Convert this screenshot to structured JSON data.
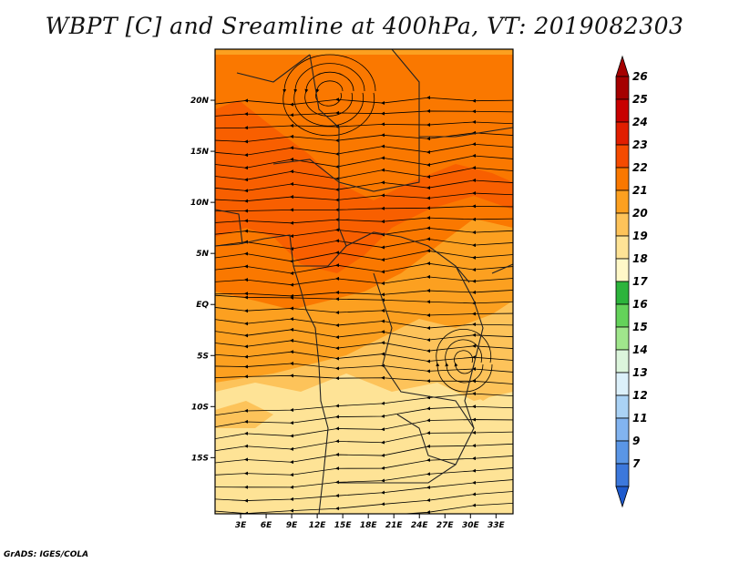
{
  "title": "WBPT [C] and Sreamline at 400hPa, VT: 2019082303",
  "credit": "GrADS: IGES/COLA",
  "map": {
    "lon_range": [
      0,
      35
    ],
    "lat_range": [
      -20.5,
      25
    ],
    "lat_ticks": [
      {
        "value": 20,
        "label": "20N"
      },
      {
        "value": 15,
        "label": "15N"
      },
      {
        "value": 10,
        "label": "10N"
      },
      {
        "value": 5,
        "label": "5N"
      },
      {
        "value": 0,
        "label": "EQ"
      },
      {
        "value": -5,
        "label": "5S"
      },
      {
        "value": -10,
        "label": "10S"
      },
      {
        "value": -15,
        "label": "15S"
      }
    ],
    "lon_ticks": [
      {
        "value": 3,
        "label": "3E"
      },
      {
        "value": 6,
        "label": "6E"
      },
      {
        "value": 9,
        "label": "9E"
      },
      {
        "value": 12,
        "label": "12E"
      },
      {
        "value": 15,
        "label": "15E"
      },
      {
        "value": 18,
        "label": "18E"
      },
      {
        "value": 21,
        "label": "21E"
      },
      {
        "value": 24,
        "label": "24E"
      },
      {
        "value": 27,
        "label": "27E"
      },
      {
        "value": 30,
        "label": "30E"
      },
      {
        "value": 33,
        "label": "33E"
      }
    ]
  },
  "colorbar": {
    "levels": [
      {
        "label": "26",
        "color": "#a50000"
      },
      {
        "label": "25",
        "color": "#c80000"
      },
      {
        "label": "24",
        "color": "#e11e00"
      },
      {
        "label": "23",
        "color": "#f54b00"
      },
      {
        "label": "22",
        "color": "#fa7800"
      },
      {
        "label": "21",
        "color": "#fca020"
      },
      {
        "label": "20",
        "color": "#fdc35a"
      },
      {
        "label": "19",
        "color": "#fee396"
      },
      {
        "label": "18",
        "color": "#fff8c8"
      },
      {
        "label": "17",
        "color": "#2db43c"
      },
      {
        "label": "16",
        "color": "#64d25a"
      },
      {
        "label": "15",
        "color": "#a0e68c"
      },
      {
        "label": "14",
        "color": "#dcf5dc"
      },
      {
        "label": "13",
        "color": "#dcf0fa"
      },
      {
        "label": "12",
        "color": "#aad2f5"
      },
      {
        "label": "11",
        "color": "#82b4f0"
      },
      {
        "label": "9",
        "color": "#5a96e6"
      },
      {
        "label": "7",
        "color": "#3c78dc"
      }
    ],
    "bottom_color": "#1e5acd"
  }
}
